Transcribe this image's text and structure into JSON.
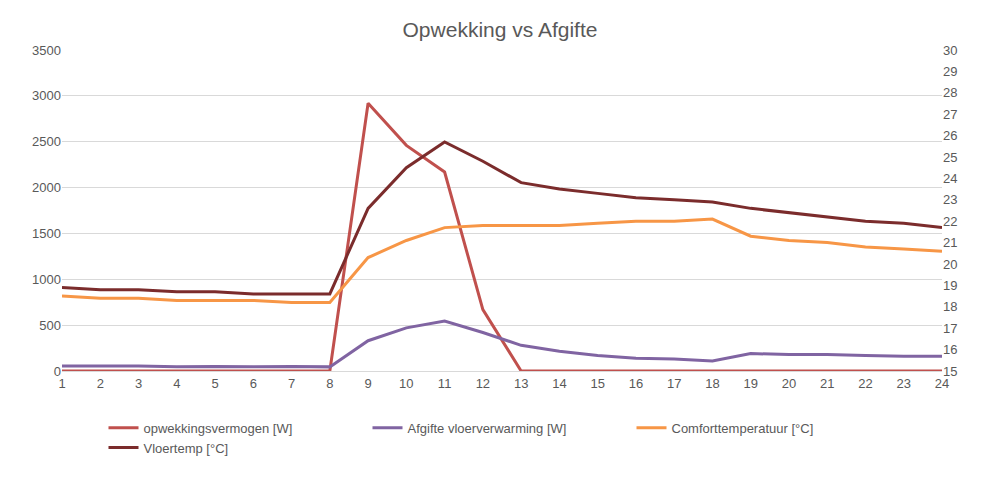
{
  "chart_data": {
    "type": "line",
    "title": "Opwekking vs Afgifte",
    "categories": [
      "1",
      "2",
      "3",
      "4",
      "5",
      "6",
      "7",
      "8",
      "9",
      "10",
      "11",
      "12",
      "13",
      "14",
      "15",
      "16",
      "17",
      "18",
      "19",
      "20",
      "21",
      "22",
      "23",
      "24"
    ],
    "series": [
      {
        "name": "opwekkingsvermogen [W]",
        "color": "#c0504d",
        "values": [
          0,
          0,
          0,
          0,
          0,
          0,
          0,
          0,
          2920,
          2460,
          2170,
          670,
          0,
          0,
          0,
          0,
          0,
          0,
          0,
          0,
          0,
          0,
          0,
          0
        ]
      },
      {
        "name": "Afgifte vloerverwarming [W]",
        "color": "#8064a2",
        "values": [
          55,
          55,
          55,
          45,
          50,
          45,
          50,
          45,
          330,
          470,
          545,
          420,
          280,
          215,
          170,
          140,
          130,
          110,
          190,
          180,
          180,
          170,
          160,
          160
        ]
      },
      {
        "name": "Comforttemperatuur [°C]",
        "color": "#f79646",
        "axis": "y2",
        "values": [
          18.5,
          18.4,
          18.4,
          18.3,
          18.3,
          18.3,
          18.2,
          18.2,
          20.3,
          21.1,
          21.7,
          21.8,
          21.8,
          21.8,
          21.9,
          22.0,
          22.0,
          22.1,
          21.3,
          21.1,
          21.0,
          20.8,
          20.7,
          20.6
        ]
      },
      {
        "name": "Vloertemp [°C]",
        "color": "#7b2c2c",
        "axis": "y2",
        "values": [
          18.9,
          18.8,
          18.8,
          18.7,
          18.7,
          18.6,
          18.6,
          18.6,
          22.6,
          24.5,
          25.7,
          24.8,
          23.8,
          23.5,
          23.3,
          23.1,
          23.0,
          22.9,
          22.6,
          22.4,
          22.2,
          22.0,
          21.9,
          21.7
        ]
      }
    ],
    "ylim": [
      0,
      3500
    ],
    "yticks": [
      0,
      500,
      1000,
      1500,
      2000,
      2500,
      3000,
      3500
    ],
    "y2lim": [
      15,
      30
    ],
    "y2ticks": [
      15,
      16,
      17,
      18,
      19,
      20,
      21,
      22,
      23,
      24,
      25,
      26,
      27,
      28,
      29,
      30
    ],
    "grid": true,
    "legend": "bottom"
  }
}
